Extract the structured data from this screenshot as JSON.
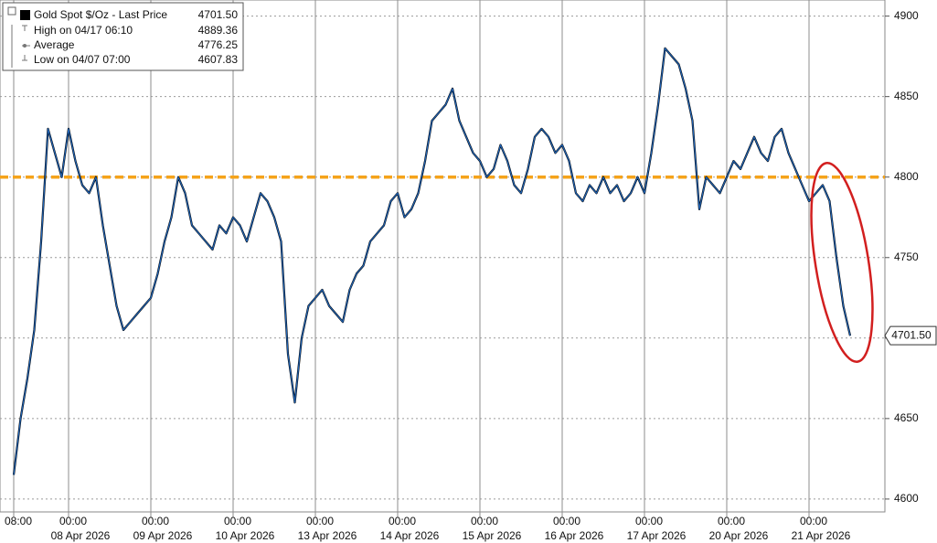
{
  "chart_data": {
    "type": "line",
    "legend": [
      {
        "name": "Gold Spot $/Oz - Last Price",
        "value": "4701.50"
      },
      {
        "name": "High on 04/17 06:10",
        "value": "4889.36"
      },
      {
        "name": "Average",
        "value": "4776.25"
      },
      {
        "name": "Low on 04/07 07:00",
        "value": "4607.83"
      }
    ],
    "x": [
      "04/07 08:00",
      "04/07 10:00",
      "04/07 12:00",
      "04/07 14:00",
      "04/07 16:00",
      "04/07 18:00",
      "04/07 20:00",
      "04/07 22:00",
      "04/08 00:00",
      "04/08 02:00",
      "04/08 04:00",
      "04/08 06:00",
      "04/08 08:00",
      "04/08 10:00",
      "04/08 12:00",
      "04/08 14:00",
      "04/08 16:00",
      "04/08 18:00",
      "04/08 20:00",
      "04/08 22:00",
      "04/09 00:00",
      "04/09 02:00",
      "04/09 04:00",
      "04/09 06:00",
      "04/09 08:00",
      "04/09 10:00",
      "04/09 12:00",
      "04/09 14:00",
      "04/09 16:00",
      "04/09 18:00",
      "04/09 20:00",
      "04/09 22:00",
      "04/10 00:00",
      "04/10 02:00",
      "04/10 04:00",
      "04/10 06:00",
      "04/10 08:00",
      "04/10 10:00",
      "04/10 12:00",
      "04/10 14:00",
      "04/10 16:00",
      "04/10 18:00",
      "04/10 20:00",
      "04/10 22:00",
      "04/13 00:00",
      "04/13 02:00",
      "04/13 04:00",
      "04/13 06:00",
      "04/13 08:00",
      "04/13 10:00",
      "04/13 12:00",
      "04/13 14:00",
      "04/13 16:00",
      "04/13 18:00",
      "04/13 20:00",
      "04/13 22:00",
      "04/14 00:00",
      "04/14 02:00",
      "04/14 04:00",
      "04/14 06:00",
      "04/14 08:00",
      "04/14 10:00",
      "04/14 12:00",
      "04/14 14:00",
      "04/14 16:00",
      "04/14 18:00",
      "04/14 20:00",
      "04/14 22:00",
      "04/15 00:00",
      "04/15 02:00",
      "04/15 04:00",
      "04/15 06:00",
      "04/15 08:00",
      "04/15 10:00",
      "04/15 12:00",
      "04/15 14:00",
      "04/15 16:00",
      "04/15 18:00",
      "04/15 20:00",
      "04/15 22:00",
      "04/16 00:00",
      "04/16 02:00",
      "04/16 04:00",
      "04/16 06:00",
      "04/16 08:00",
      "04/16 10:00",
      "04/16 12:00",
      "04/16 14:00",
      "04/16 16:00",
      "04/16 18:00",
      "04/16 20:00",
      "04/16 22:00",
      "04/17 00:00",
      "04/17 02:00",
      "04/17 04:00",
      "04/17 06:00",
      "04/17 08:00",
      "04/17 10:00",
      "04/17 12:00",
      "04/17 14:00",
      "04/17 16:00",
      "04/17 18:00",
      "04/17 20:00",
      "04/17 22:00",
      "04/20 00:00",
      "04/20 02:00",
      "04/20 04:00",
      "04/20 06:00",
      "04/20 08:00",
      "04/20 10:00",
      "04/20 12:00",
      "04/20 14:00",
      "04/20 16:00",
      "04/20 18:00",
      "04/20 20:00",
      "04/20 22:00",
      "04/21 00:00",
      "04/21 02:00",
      "04/21 04:00",
      "04/21 06:00",
      "04/21 08:00",
      "04/21 10:00",
      "04/21 12:00"
    ],
    "series": [
      {
        "name": "Gold Spot $/Oz - Last Price",
        "color": "#1f63b5",
        "values": [
          4615,
          4650,
          4675,
          4705,
          4760,
          4830,
          4815,
          4800,
          4830,
          4810,
          4795,
          4790,
          4800,
          4770,
          4745,
          4720,
          4705,
          4710,
          4715,
          4720,
          4725,
          4740,
          4760,
          4775,
          4800,
          4790,
          4770,
          4765,
          4760,
          4755,
          4770,
          4765,
          4775,
          4770,
          4760,
          4775,
          4790,
          4785,
          4775,
          4760,
          4690,
          4660,
          4700,
          4720,
          4725,
          4730,
          4720,
          4715,
          4710,
          4730,
          4740,
          4745,
          4760,
          4765,
          4770,
          4785,
          4790,
          4775,
          4780,
          4790,
          4810,
          4835,
          4840,
          4845,
          4855,
          4835,
          4825,
          4815,
          4810,
          4800,
          4805,
          4820,
          4810,
          4795,
          4790,
          4805,
          4825,
          4830,
          4825,
          4815,
          4820,
          4810,
          4790,
          4785,
          4795,
          4790,
          4800,
          4790,
          4795,
          4785,
          4790,
          4800,
          4790,
          4815,
          4845,
          4880,
          4875,
          4870,
          4855,
          4835,
          4780,
          4800,
          4795,
          4790,
          4800,
          4810,
          4805,
          4815,
          4825,
          4815,
          4810,
          4825,
          4830,
          4815,
          4805,
          4795,
          4785,
          4790,
          4795,
          4785,
          4750,
          4720,
          4701.5
        ]
      }
    ],
    "hline": {
      "value": 4800,
      "color": "#f5a31a"
    },
    "last_price": {
      "value": 4701.5,
      "label": "4701.50"
    },
    "ylim": [
      4592,
      4910
    ],
    "yticks": [
      4600,
      4650,
      4700,
      4750,
      4800,
      4850,
      4900
    ],
    "xticks": [
      {
        "value": "04/07 08:00",
        "label": "08:00"
      },
      {
        "value": "04/08 00:00",
        "label": "00:00",
        "date": "08 Apr 2026"
      },
      {
        "value": "04/09 00:00",
        "label": "00:00",
        "date": "09 Apr 2026"
      },
      {
        "value": "04/10 00:00",
        "label": "00:00",
        "date": "10 Apr 2026"
      },
      {
        "value": "04/13 00:00",
        "label": "00:00",
        "date": "13 Apr 2026"
      },
      {
        "value": "04/14 00:00",
        "label": "00:00",
        "date": "14 Apr 2026"
      },
      {
        "value": "04/15 00:00",
        "label": "00:00",
        "date": "15 Apr 2026"
      },
      {
        "value": "04/16 00:00",
        "label": "00:00",
        "date": "16 Apr 2026"
      },
      {
        "value": "04/17 00:00",
        "label": "00:00",
        "date": "17 Apr 2026"
      },
      {
        "value": "04/20 00:00",
        "label": "00:00",
        "date": "20 Apr 2026"
      },
      {
        "value": "04/21 00:00",
        "label": "00:00",
        "date": "21 Apr 2026"
      }
    ],
    "grid": true
  }
}
